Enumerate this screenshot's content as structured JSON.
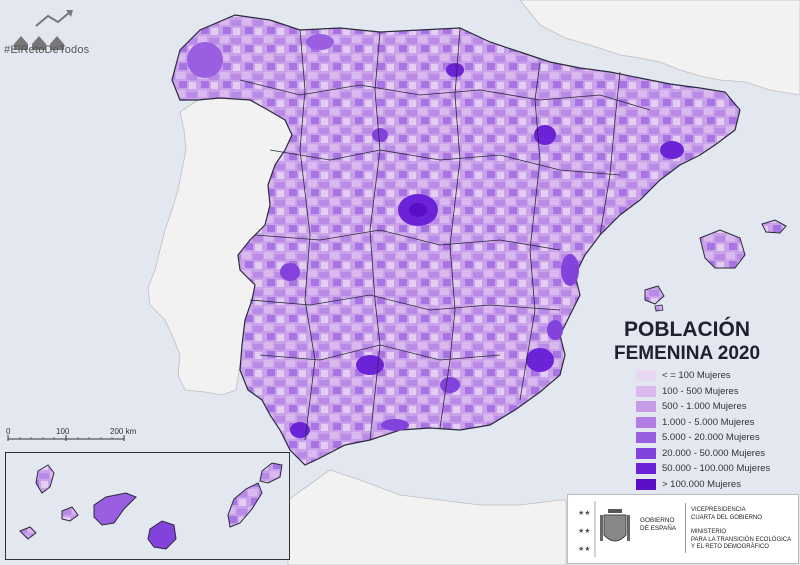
{
  "hashtag": "#ElRetoDeTodos",
  "title_line1": "POBLACIÓN",
  "title_line2": "FEMENINA 2020",
  "legend": [
    {
      "label": "< = 100 Mujeres",
      "color": "#e9d8f1"
    },
    {
      "label": "100 - 500 Mujeres",
      "color": "#d9b9ee"
    },
    {
      "label": "500 - 1.000 Mujeres",
      "color": "#c79be8"
    },
    {
      "label": "1.000 - 5.000 Mujeres",
      "color": "#b27ee4"
    },
    {
      "label": "5.000 - 20.000 Mujeres",
      "color": "#9a5ee0"
    },
    {
      "label": "20.000 - 50.000 Mujeres",
      "color": "#8442dc"
    },
    {
      "label": "50.000 - 100.000 Mujeres",
      "color": "#6c22d6"
    },
    {
      "label": "> 100.000 Mujeres",
      "color": "#5a0fc6"
    }
  ],
  "scale": {
    "l0": "0",
    "l100": "100",
    "l200": "200 km"
  },
  "government": {
    "gobierno_line1": "GOBIERNO",
    "gobierno_line2": "DE ESPAÑA",
    "vice_line1": "VICEPRESIDENCIA",
    "vice_line2": "CUARTA DEL GOBIERNO",
    "min_line1": "MINISTERIO",
    "min_line2": "PARA LA TRANSICIÓN ECOLÓGICA",
    "min_line3": "Y EL RETO DEMOGRÁFICO"
  },
  "colors": {
    "sea": "#e3e7ef",
    "neighbor_land": "#f2f2f2",
    "border": "#2a2a3a"
  }
}
